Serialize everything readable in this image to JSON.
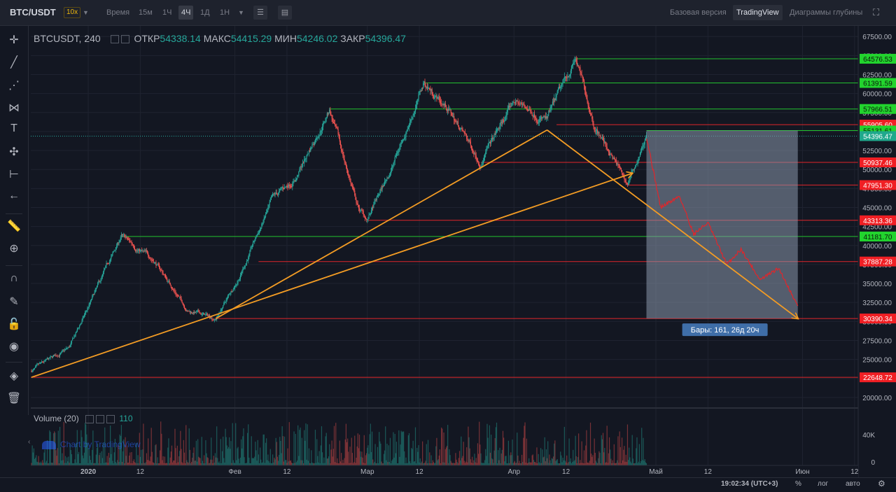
{
  "topbar": {
    "symbol": "BTC/USDT",
    "leverage": "10x",
    "time_label": "Время",
    "timeframes": [
      {
        "label": "15м",
        "active": false
      },
      {
        "label": "1Ч",
        "active": false
      },
      {
        "label": "4Ч",
        "active": true
      },
      {
        "label": "1Д",
        "active": false
      },
      {
        "label": "1Н",
        "active": false
      }
    ],
    "view_buttons": [
      {
        "label": "Базовая версия",
        "active": false
      },
      {
        "label": "TradingView",
        "active": true
      },
      {
        "label": "Диаграммы глубины",
        "active": false
      }
    ]
  },
  "header": {
    "ticker": "BTCUSDT, 240",
    "open_label": "ОТКР",
    "open": "54338.14",
    "high_label": "МАКС",
    "high": "54415.29",
    "low_label": "МИН",
    "low": "54246.02",
    "close_label": "ЗАКР",
    "close": "54396.47"
  },
  "volume": {
    "label": "Volume (20)",
    "value": "110",
    "axis_labels": [
      "40K",
      "0"
    ]
  },
  "watermark": "Chart by TradingView",
  "bottom": {
    "time": "19:02:34 (UTC+3)",
    "percent": "%",
    "log": "лог",
    "auto": "авто"
  },
  "colors": {
    "support": "#22c32e",
    "resistance": "#e0262b",
    "trendline": "#f39c24",
    "up": "#26a69a",
    "down": "#ef5350",
    "box": "#8a97ab"
  },
  "chart_data": {
    "type": "candlestick",
    "symbol": "BTCUSDT",
    "interval": "240",
    "y_axis_labels": [
      67500,
      65000,
      62500,
      60000,
      57500,
      55000,
      52500,
      50000,
      47500,
      45000,
      42500,
      40000,
      37500,
      35000,
      32500,
      30000,
      27500,
      25000,
      22500,
      20000
    ],
    "x_axis_labels": [
      "2020",
      "12",
      "Фев",
      "12",
      "Мар",
      "12",
      "Апр",
      "12",
      "Май",
      "12",
      "Июн",
      "12"
    ],
    "price_trajectory": [
      [
        "2020-12-20",
        23500
      ],
      [
        "2020-12-28",
        26500
      ],
      [
        "2021-01-08",
        41181
      ],
      [
        "2021-01-15",
        38000
      ],
      [
        "2021-01-22",
        31500
      ],
      [
        "2021-01-28",
        30390
      ],
      [
        "2021-02-02",
        36000
      ],
      [
        "2021-02-09",
        46000
      ],
      [
        "2021-02-14",
        49000
      ],
      [
        "2021-02-21",
        57966
      ],
      [
        "2021-02-27",
        45000
      ],
      [
        "2021-03-01",
        43313
      ],
      [
        "2021-03-06",
        50000
      ],
      [
        "2021-03-13",
        61391
      ],
      [
        "2021-03-18",
        58000
      ],
      [
        "2021-03-25",
        51000
      ],
      [
        "2021-04-01",
        59000
      ],
      [
        "2021-04-08",
        56500
      ],
      [
        "2021-04-14",
        64576
      ],
      [
        "2021-04-18",
        56000
      ],
      [
        "2021-04-25",
        48000
      ],
      [
        "2021-04-29",
        54396
      ]
    ],
    "projection": [
      [
        "2021-04-29",
        54396
      ],
      [
        "2021-05-02",
        45000
      ],
      [
        "2021-05-06",
        46500
      ],
      [
        "2021-05-09",
        41500
      ],
      [
        "2021-05-12",
        43000
      ],
      [
        "2021-05-16",
        37500
      ],
      [
        "2021-05-19",
        39500
      ],
      [
        "2021-05-23",
        35500
      ],
      [
        "2021-05-27",
        37000
      ],
      [
        "2021-05-31",
        32000
      ]
    ],
    "horizontal_levels": [
      {
        "price": "64576.53",
        "kind": "support"
      },
      {
        "price": "61391.59",
        "kind": "support"
      },
      {
        "price": "57966.51",
        "kind": "support"
      },
      {
        "price": "55905.60",
        "kind": "resistance"
      },
      {
        "price": "55131.61",
        "kind": "support"
      },
      {
        "price": "54396.47",
        "kind": "current"
      },
      {
        "price": "50937.46",
        "kind": "resistance"
      },
      {
        "price": "47951.30",
        "kind": "resistance"
      },
      {
        "price": "43313.36",
        "kind": "resistance"
      },
      {
        "price": "41181.70",
        "kind": "support"
      },
      {
        "price": "37887.28",
        "kind": "resistance"
      },
      {
        "price": "30390.34",
        "kind": "resistance"
      },
      {
        "price": "22648.72",
        "kind": "resistance"
      }
    ],
    "trendlines": [
      {
        "from": [
          "2020-12-20",
          22648
        ],
        "to": [
          "2021-04-26",
          49500
        ],
        "arrow": true
      },
      {
        "from": [
          "2021-01-28",
          30390
        ],
        "to": [
          "2021-04-08",
          55200
        ],
        "arrow": false
      },
      {
        "from": [
          "2021-04-08",
          55200
        ],
        "to": [
          "2021-05-31",
          30390
        ],
        "arrow": true
      }
    ],
    "measure_box": {
      "from": [
        "2021-04-29",
        55131
      ],
      "to": [
        "2021-05-31",
        30390
      ],
      "label": "Бары: 161, 26д 20ч"
    }
  }
}
